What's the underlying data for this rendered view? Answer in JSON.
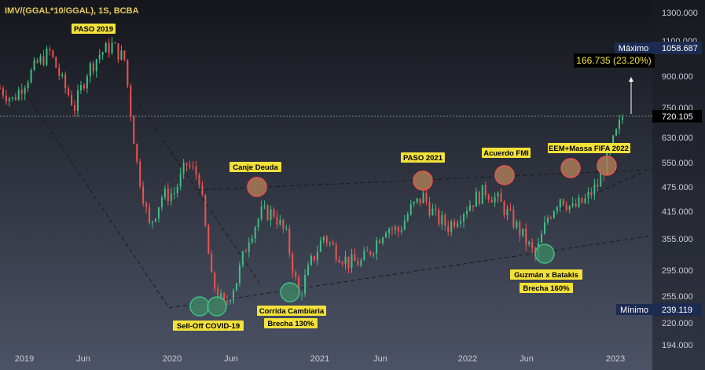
{
  "header": {
    "ticker_title": "IMV/(GGAL*10/GGAL), 1S, BCBA"
  },
  "price_scale": {
    "ticks": [
      "1300.000",
      "1100.000",
      "900.000",
      "750.000",
      "630.000",
      "550.000",
      "475.000",
      "415.000",
      "355.000",
      "295.000",
      "255.000",
      "220.000",
      "194.000"
    ],
    "max_label": "Máximo",
    "max_value": "1058.687",
    "last_value": "720.105",
    "min_label": "Mínimo",
    "min_value": "239.119"
  },
  "time_scale": {
    "ticks": [
      "2019",
      "Jun",
      "2020",
      "Jun",
      "2021",
      "Jun",
      "2022",
      "Jun",
      "2023"
    ]
  },
  "measure": {
    "label": "166.735 (23.20%)"
  },
  "annotations": [
    {
      "label": "PASO 2019"
    },
    {
      "label": "Canje Deuda"
    },
    {
      "label": "PASO 2021"
    },
    {
      "label": "Acuerdo FMI"
    },
    {
      "label": "EEM+Massa FIFA 2022"
    },
    {
      "label": "Sell-Off COVID-19"
    },
    {
      "label": "Corrida Cambiaria"
    },
    {
      "label": "Brecha 130%"
    },
    {
      "label": "Guzmán x Batakis"
    },
    {
      "label": "Brecha 160%"
    }
  ],
  "colors": {
    "background": "#1f232b",
    "up_candle": "#3fbf84",
    "down_candle": "#ef5350",
    "label_yellow": "#f2e13a",
    "high_circle": "#ef5350",
    "low_circle": "#3fbf84",
    "scale_badge": "#1c2b52"
  },
  "chart_data": {
    "type": "candlestick",
    "title": "IMV/(GGAL*10/GGAL), 1S, BCBA",
    "interval": "1S",
    "scale": "log",
    "ylim": [
      185,
      1350
    ],
    "x_range": [
      "2018-11",
      "2023-02"
    ],
    "grid": false,
    "series": [
      {
        "values": [
          [
            "2018-11",
            840
          ],
          [
            "2018-12",
            790
          ],
          [
            "2019-01",
            870
          ],
          [
            "2019-02",
            960
          ],
          [
            "2019-03",
            1020
          ],
          [
            "2019-04",
            870
          ],
          [
            "2019-05",
            760
          ],
          [
            "2019-06",
            920
          ],
          [
            "2019-07",
            1010
          ],
          [
            "2019-08",
            1058.7
          ],
          [
            "2019-09",
            980
          ],
          [
            "2019-10",
            560
          ],
          [
            "2019-11",
            400
          ],
          [
            "2019-12",
            470
          ],
          [
            "2020-01",
            480
          ],
          [
            "2020-02",
            560
          ],
          [
            "2020-03",
            520
          ],
          [
            "2020-04",
            300
          ],
          [
            "2020-05",
            260
          ],
          [
            "2020-06",
            300
          ],
          [
            "2020-07",
            380
          ],
          [
            "2020-08",
            430
          ],
          [
            "2020-09",
            430
          ],
          [
            "2020-10",
            380
          ],
          [
            "2020-11",
            275
          ],
          [
            "2020-12",
            330
          ],
          [
            "2021-01",
            380
          ],
          [
            "2021-02",
            350
          ],
          [
            "2021-03",
            330
          ],
          [
            "2021-04",
            330
          ],
          [
            "2021-05",
            360
          ],
          [
            "2021-06",
            400
          ],
          [
            "2021-07",
            390
          ],
          [
            "2021-08",
            440
          ],
          [
            "2021-09",
            470
          ],
          [
            "2021-10",
            420
          ],
          [
            "2021-11",
            400
          ],
          [
            "2021-12",
            430
          ],
          [
            "2022-01",
            460
          ],
          [
            "2022-02",
            485
          ],
          [
            "2022-03",
            460
          ],
          [
            "2022-04",
            420
          ],
          [
            "2022-05",
            380
          ],
          [
            "2022-06",
            340
          ],
          [
            "2022-07",
            420
          ],
          [
            "2022-08",
            470
          ],
          [
            "2022-09",
            440
          ],
          [
            "2022-10",
            460
          ],
          [
            "2022-11",
            500
          ],
          [
            "2022-12",
            600
          ],
          [
            "2023-01",
            720.1
          ]
        ]
      }
    ],
    "max": 1058.687,
    "min": 239.119,
    "last": 720.105,
    "measurement": {
      "change": 166.735,
      "percent": 23.2
    }
  }
}
